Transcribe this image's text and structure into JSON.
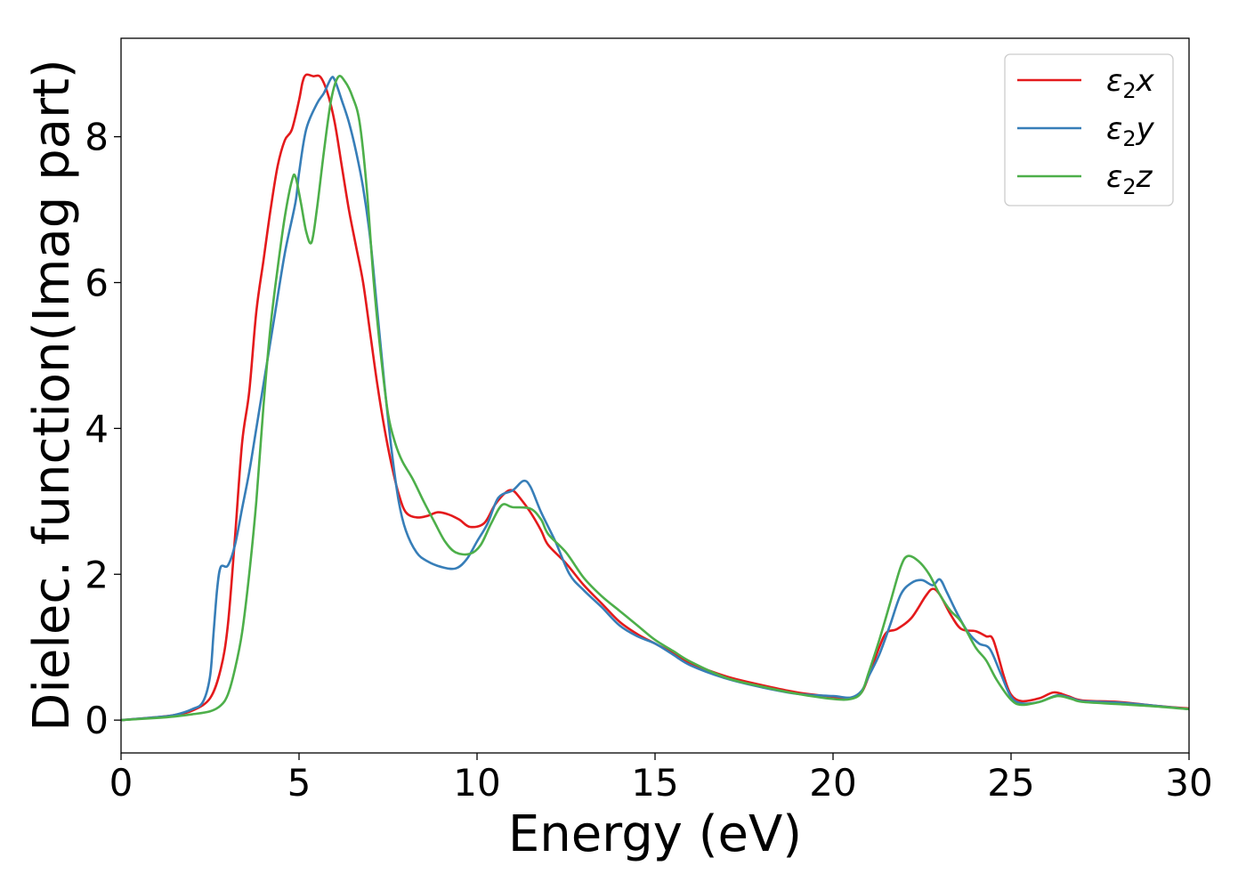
{
  "chart_data": {
    "type": "line",
    "title": "",
    "xlabel": "Energy (eV)",
    "ylabel": "Dielec. function(Imag part)",
    "xlim": [
      0,
      30
    ],
    "ylim": [
      -0.45,
      9.35
    ],
    "xticks": [
      0,
      5,
      10,
      15,
      20,
      25,
      30
    ],
    "yticks": [
      0,
      2,
      4,
      6,
      8
    ],
    "grid": false,
    "legend_position": "top-right",
    "series": [
      {
        "name": "ε2x",
        "legend_main": "ε",
        "legend_sub": "2",
        "legend_suffix": "x",
        "color": "#e41a1c",
        "points": [
          [
            0,
            0
          ],
          [
            1,
            0.04
          ],
          [
            1.5,
            0.07
          ],
          [
            2,
            0.13
          ],
          [
            2.5,
            0.3
          ],
          [
            2.8,
            0.7
          ],
          [
            3,
            1.3
          ],
          [
            3.2,
            2.5
          ],
          [
            3.4,
            3.8
          ],
          [
            3.6,
            4.5
          ],
          [
            3.8,
            5.6
          ],
          [
            4,
            6.3
          ],
          [
            4.2,
            7.0
          ],
          [
            4.4,
            7.6
          ],
          [
            4.6,
            7.95
          ],
          [
            4.8,
            8.1
          ],
          [
            5,
            8.5
          ],
          [
            5.1,
            8.75
          ],
          [
            5.2,
            8.85
          ],
          [
            5.4,
            8.83
          ],
          [
            5.6,
            8.82
          ],
          [
            5.8,
            8.6
          ],
          [
            6,
            8.2
          ],
          [
            6.2,
            7.6
          ],
          [
            6.4,
            7.0
          ],
          [
            6.6,
            6.5
          ],
          [
            6.8,
            6.0
          ],
          [
            7,
            5.3
          ],
          [
            7.2,
            4.6
          ],
          [
            7.4,
            4.0
          ],
          [
            7.6,
            3.5
          ],
          [
            7.8,
            3.1
          ],
          [
            8,
            2.85
          ],
          [
            8.3,
            2.78
          ],
          [
            8.6,
            2.8
          ],
          [
            8.9,
            2.85
          ],
          [
            9.2,
            2.82
          ],
          [
            9.5,
            2.75
          ],
          [
            9.8,
            2.65
          ],
          [
            10.2,
            2.7
          ],
          [
            10.5,
            2.95
          ],
          [
            10.8,
            3.12
          ],
          [
            11,
            3.15
          ],
          [
            11.2,
            3.05
          ],
          [
            11.5,
            2.85
          ],
          [
            11.8,
            2.6
          ],
          [
            12,
            2.4
          ],
          [
            12.5,
            2.15
          ],
          [
            13,
            1.85
          ],
          [
            13.5,
            1.6
          ],
          [
            14,
            1.35
          ],
          [
            14.5,
            1.18
          ],
          [
            15,
            1.05
          ],
          [
            15.5,
            0.92
          ],
          [
            16,
            0.78
          ],
          [
            17,
            0.6
          ],
          [
            18,
            0.48
          ],
          [
            19,
            0.38
          ],
          [
            20,
            0.32
          ],
          [
            20.5,
            0.3
          ],
          [
            20.8,
            0.38
          ],
          [
            21,
            0.6
          ],
          [
            21.3,
            1.0
          ],
          [
            21.5,
            1.2
          ],
          [
            21.8,
            1.25
          ],
          [
            22.2,
            1.4
          ],
          [
            22.6,
            1.7
          ],
          [
            22.8,
            1.8
          ],
          [
            23,
            1.72
          ],
          [
            23.3,
            1.45
          ],
          [
            23.6,
            1.25
          ],
          [
            24,
            1.22
          ],
          [
            24.3,
            1.15
          ],
          [
            24.5,
            1.1
          ],
          [
            24.8,
            0.6
          ],
          [
            25,
            0.35
          ],
          [
            25.3,
            0.26
          ],
          [
            25.8,
            0.3
          ],
          [
            26.2,
            0.38
          ],
          [
            26.6,
            0.33
          ],
          [
            27,
            0.27
          ],
          [
            28,
            0.25
          ],
          [
            29,
            0.2
          ],
          [
            30,
            0.16
          ]
        ]
      },
      {
        "name": "ε2y",
        "legend_main": "ε",
        "legend_sub": "2",
        "legend_suffix": "y",
        "color": "#377eb8",
        "points": [
          [
            0,
            0
          ],
          [
            1,
            0.04
          ],
          [
            1.5,
            0.07
          ],
          [
            2,
            0.15
          ],
          [
            2.3,
            0.25
          ],
          [
            2.5,
            0.6
          ],
          [
            2.6,
            1.2
          ],
          [
            2.7,
            1.8
          ],
          [
            2.8,
            2.1
          ],
          [
            3,
            2.12
          ],
          [
            3.2,
            2.4
          ],
          [
            3.4,
            2.9
          ],
          [
            3.6,
            3.4
          ],
          [
            3.8,
            4.0
          ],
          [
            4,
            4.6
          ],
          [
            4.3,
            5.5
          ],
          [
            4.6,
            6.4
          ],
          [
            4.9,
            7.1
          ],
          [
            5,
            7.5
          ],
          [
            5.2,
            8.1
          ],
          [
            5.5,
            8.45
          ],
          [
            5.7,
            8.6
          ],
          [
            5.9,
            8.8
          ],
          [
            6,
            8.78
          ],
          [
            6.2,
            8.5
          ],
          [
            6.4,
            8.2
          ],
          [
            6.6,
            7.8
          ],
          [
            6.8,
            7.3
          ],
          [
            7,
            6.6
          ],
          [
            7.2,
            5.6
          ],
          [
            7.4,
            4.6
          ],
          [
            7.6,
            3.7
          ],
          [
            7.8,
            3.0
          ],
          [
            8,
            2.6
          ],
          [
            8.3,
            2.3
          ],
          [
            8.6,
            2.18
          ],
          [
            9,
            2.1
          ],
          [
            9.4,
            2.08
          ],
          [
            9.7,
            2.2
          ],
          [
            10,
            2.45
          ],
          [
            10.3,
            2.7
          ],
          [
            10.6,
            3.05
          ],
          [
            11,
            3.15
          ],
          [
            11.3,
            3.28
          ],
          [
            11.5,
            3.2
          ],
          [
            11.8,
            2.85
          ],
          [
            12.2,
            2.45
          ],
          [
            12.6,
            2.0
          ],
          [
            13,
            1.78
          ],
          [
            13.5,
            1.55
          ],
          [
            14,
            1.3
          ],
          [
            14.5,
            1.15
          ],
          [
            15,
            1.05
          ],
          [
            15.5,
            0.9
          ],
          [
            16,
            0.75
          ],
          [
            17,
            0.57
          ],
          [
            18,
            0.45
          ],
          [
            19,
            0.36
          ],
          [
            20,
            0.33
          ],
          [
            20.5,
            0.31
          ],
          [
            20.8,
            0.4
          ],
          [
            21,
            0.6
          ],
          [
            21.3,
            0.9
          ],
          [
            21.6,
            1.3
          ],
          [
            21.9,
            1.72
          ],
          [
            22.2,
            1.88
          ],
          [
            22.5,
            1.92
          ],
          [
            22.8,
            1.85
          ],
          [
            23,
            1.93
          ],
          [
            23.2,
            1.75
          ],
          [
            23.5,
            1.45
          ],
          [
            23.8,
            1.2
          ],
          [
            24.1,
            1.05
          ],
          [
            24.4,
            0.98
          ],
          [
            24.7,
            0.65
          ],
          [
            25,
            0.32
          ],
          [
            25.3,
            0.23
          ],
          [
            25.8,
            0.25
          ],
          [
            26.3,
            0.34
          ],
          [
            26.7,
            0.3
          ],
          [
            27,
            0.26
          ],
          [
            28,
            0.24
          ],
          [
            29,
            0.2
          ],
          [
            30,
            0.15
          ]
        ]
      },
      {
        "name": "ε2z",
        "legend_main": "ε",
        "legend_sub": "2",
        "legend_suffix": "z",
        "color": "#4daf4a",
        "points": [
          [
            0,
            0
          ],
          [
            1,
            0.03
          ],
          [
            1.5,
            0.05
          ],
          [
            2,
            0.08
          ],
          [
            2.5,
            0.12
          ],
          [
            2.8,
            0.2
          ],
          [
            3,
            0.35
          ],
          [
            3.2,
            0.7
          ],
          [
            3.4,
            1.2
          ],
          [
            3.6,
            2.0
          ],
          [
            3.8,
            3.0
          ],
          [
            4,
            4.3
          ],
          [
            4.2,
            5.4
          ],
          [
            4.4,
            6.2
          ],
          [
            4.6,
            6.9
          ],
          [
            4.8,
            7.4
          ],
          [
            4.9,
            7.45
          ],
          [
            5.05,
            7.1
          ],
          [
            5.2,
            6.7
          ],
          [
            5.35,
            6.55
          ],
          [
            5.5,
            7.0
          ],
          [
            5.7,
            7.8
          ],
          [
            5.9,
            8.5
          ],
          [
            6.1,
            8.82
          ],
          [
            6.3,
            8.75
          ],
          [
            6.5,
            8.55
          ],
          [
            6.7,
            8.2
          ],
          [
            6.9,
            7.3
          ],
          [
            7.1,
            6.0
          ],
          [
            7.3,
            5.0
          ],
          [
            7.5,
            4.2
          ],
          [
            7.7,
            3.8
          ],
          [
            7.9,
            3.55
          ],
          [
            8.2,
            3.3
          ],
          [
            8.5,
            3.0
          ],
          [
            8.8,
            2.72
          ],
          [
            9.1,
            2.45
          ],
          [
            9.4,
            2.3
          ],
          [
            9.8,
            2.28
          ],
          [
            10.1,
            2.4
          ],
          [
            10.4,
            2.7
          ],
          [
            10.7,
            2.95
          ],
          [
            11,
            2.92
          ],
          [
            11.5,
            2.9
          ],
          [
            11.8,
            2.75
          ],
          [
            12,
            2.55
          ],
          [
            12.5,
            2.3
          ],
          [
            13,
            1.95
          ],
          [
            13.5,
            1.7
          ],
          [
            14,
            1.5
          ],
          [
            14.5,
            1.3
          ],
          [
            15,
            1.1
          ],
          [
            15.5,
            0.95
          ],
          [
            16,
            0.8
          ],
          [
            17,
            0.58
          ],
          [
            18,
            0.46
          ],
          [
            19,
            0.36
          ],
          [
            20,
            0.29
          ],
          [
            20.5,
            0.29
          ],
          [
            20.8,
            0.38
          ],
          [
            21,
            0.65
          ],
          [
            21.3,
            1.1
          ],
          [
            21.6,
            1.6
          ],
          [
            21.9,
            2.1
          ],
          [
            22.1,
            2.25
          ],
          [
            22.4,
            2.18
          ],
          [
            22.7,
            2.0
          ],
          [
            23,
            1.72
          ],
          [
            23.3,
            1.5
          ],
          [
            23.6,
            1.35
          ],
          [
            24,
            1.0
          ],
          [
            24.3,
            0.82
          ],
          [
            24.6,
            0.55
          ],
          [
            25,
            0.28
          ],
          [
            25.3,
            0.21
          ],
          [
            25.8,
            0.25
          ],
          [
            26.3,
            0.33
          ],
          [
            26.7,
            0.29
          ],
          [
            27,
            0.25
          ],
          [
            28,
            0.22
          ],
          [
            29,
            0.19
          ],
          [
            30,
            0.15
          ]
        ]
      }
    ]
  }
}
